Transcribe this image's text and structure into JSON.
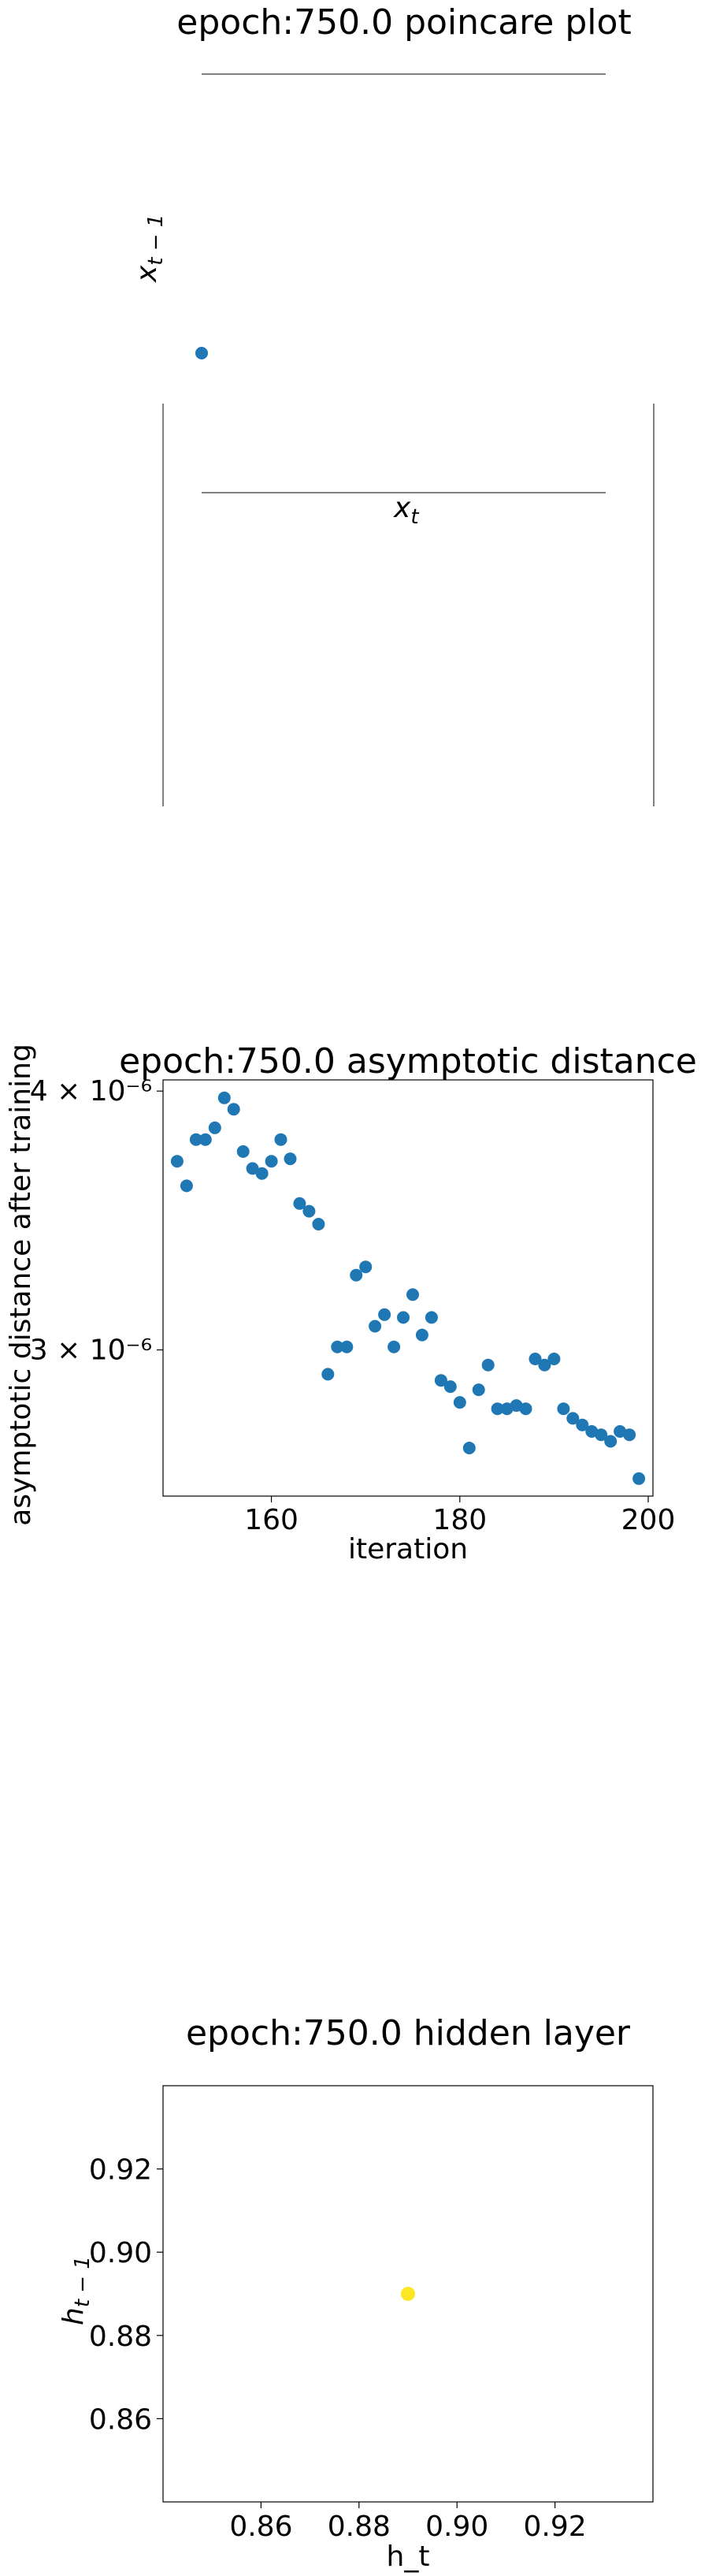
{
  "chart_data": [
    {
      "type": "scatter",
      "title": "epoch:750.0 poincare plot",
      "xlabel": "x_t",
      "ylabel": "x_{t-1}",
      "frame": "partial",
      "points": [
        {
          "x": 0,
          "y": 0
        }
      ],
      "color": "#1f77b4"
    },
    {
      "type": "scatter",
      "title": "epoch:750.0 asymptotic distance",
      "xlabel": "iteration",
      "ylabel": "asymptotic distance after training",
      "yscale": "log",
      "xlim": [
        148.5,
        200.5
      ],
      "ylim": [
        2.55e-06,
        4.05e-06
      ],
      "xticks": [
        160,
        180,
        200
      ],
      "yticks": [
        {
          "value": 3e-06,
          "label": "3 × 10⁻⁶"
        },
        {
          "value": 4e-06,
          "label": "4 × 10⁻⁶"
        }
      ],
      "color": "#1f77b4",
      "x": [
        150,
        151,
        152,
        153,
        154,
        155,
        156,
        157,
        158,
        159,
        160,
        161,
        162,
        163,
        164,
        165,
        166,
        167,
        168,
        169,
        170,
        171,
        172,
        173,
        174,
        175,
        176,
        177,
        178,
        179,
        180,
        181,
        182,
        183,
        184,
        185,
        186,
        187,
        188,
        189,
        190,
        191,
        192,
        193,
        194,
        195,
        196,
        197,
        198,
        199
      ],
      "y": [
        3.7e-06,
        3.6e-06,
        3.79e-06,
        3.79e-06,
        3.84e-06,
        3.97e-06,
        3.92e-06,
        3.74e-06,
        3.67e-06,
        3.65e-06,
        3.7e-06,
        3.79e-06,
        3.71e-06,
        3.53e-06,
        3.5e-06,
        3.45e-06,
        2.92e-06,
        3.01e-06,
        3.01e-06,
        3.26e-06,
        3.29e-06,
        3.08e-06,
        3.12e-06,
        3.01e-06,
        3.11e-06,
        3.19e-06,
        3.05e-06,
        3.11e-06,
        2.9e-06,
        2.88e-06,
        2.83e-06,
        2.69e-06,
        2.87e-06,
        2.95e-06,
        2.81e-06,
        2.81e-06,
        2.82e-06,
        2.81e-06,
        2.97e-06,
        2.95e-06,
        2.97e-06,
        2.81e-06,
        2.78e-06,
        2.76e-06,
        2.74e-06,
        2.73e-06,
        2.71e-06,
        2.74e-06,
        2.73e-06,
        2.6e-06
      ]
    },
    {
      "type": "scatter",
      "title": "epoch:750.0 hidden layer",
      "xlabel": "h_t",
      "ylabel": "h_{t-1}",
      "xlim": [
        0.84,
        0.94
      ],
      "ylim": [
        0.84,
        0.94
      ],
      "xticks": [
        0.86,
        0.88,
        0.9,
        0.92
      ],
      "yticks": [
        0.86,
        0.88,
        0.9,
        0.92
      ],
      "xticklabels": [
        "0.86",
        "0.88",
        "0.90",
        "0.92"
      ],
      "yticklabels": [
        "0.86",
        "0.88",
        "0.90",
        "0.92"
      ],
      "color": "#fde725",
      "points": [
        {
          "x": 0.89,
          "y": 0.89
        }
      ]
    }
  ]
}
